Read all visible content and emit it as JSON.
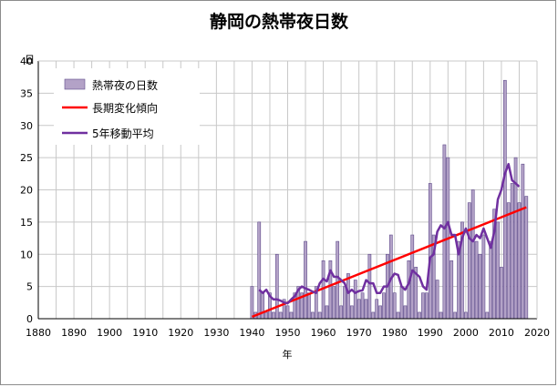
{
  "page": {
    "title": "静岡の熱帯夜日数"
  },
  "chart_data": {
    "type": "bar",
    "title": "静岡の熱帯夜日数",
    "xlabel": "年",
    "ylabel": "日",
    "xlim": [
      1880,
      2020
    ],
    "ylim": [
      0,
      40
    ],
    "x_ticks": [
      1880,
      1890,
      1900,
      1910,
      1920,
      1930,
      1940,
      1950,
      1960,
      1970,
      1980,
      1990,
      2000,
      2010,
      2020
    ],
    "y_ticks": [
      0,
      5,
      10,
      15,
      20,
      25,
      30,
      35,
      40
    ],
    "grid": true,
    "legend_position": "top-left",
    "colors": {
      "bar_fill": "#b3a2c7",
      "bar_stroke": "#5f4b8b",
      "trend": "#ff0000",
      "moving_avg": "#7030a0",
      "grid": "#c8c8c8"
    },
    "series": [
      {
        "name": "熱帯夜の日数",
        "kind": "bar",
        "x": [
          1940,
          1941,
          1942,
          1943,
          1944,
          1945,
          1946,
          1947,
          1948,
          1949,
          1950,
          1951,
          1952,
          1953,
          1954,
          1955,
          1956,
          1957,
          1958,
          1959,
          1960,
          1961,
          1962,
          1963,
          1964,
          1965,
          1966,
          1967,
          1968,
          1969,
          1970,
          1971,
          1972,
          1973,
          1974,
          1975,
          1976,
          1977,
          1978,
          1979,
          1980,
          1981,
          1982,
          1983,
          1984,
          1985,
          1986,
          1987,
          1988,
          1989,
          1990,
          1991,
          1992,
          1993,
          1994,
          1995,
          1996,
          1997,
          1998,
          1999,
          2000,
          2001,
          2002,
          2003,
          2004,
          2005,
          2006,
          2007,
          2008,
          2009,
          2010,
          2011,
          2012,
          2013,
          2014,
          2015,
          2016,
          2017
        ],
        "values": [
          5,
          1,
          15,
          4,
          1,
          4,
          1,
          10,
          1,
          3,
          2,
          1,
          4,
          5,
          4,
          12,
          4,
          1,
          5,
          1,
          9,
          2,
          9,
          5,
          12,
          2,
          5,
          7,
          2,
          6,
          3,
          4,
          3,
          10,
          1,
          3,
          2,
          4,
          10,
          13,
          4,
          1,
          5,
          2,
          9,
          13,
          8,
          1,
          4,
          4,
          21,
          13,
          6,
          1,
          27,
          25,
          9,
          1,
          12,
          15,
          1,
          18,
          20,
          12,
          10,
          13,
          1,
          12,
          17,
          15,
          8,
          37,
          18,
          21,
          25,
          18,
          24,
          19
        ]
      },
      {
        "name": "長期変化傾向",
        "kind": "line",
        "x": [
          1940,
          2017
        ],
        "values": [
          0.3,
          17.3
        ]
      },
      {
        "name": "5年移動平均",
        "kind": "line",
        "x": [
          1942,
          1943,
          1944,
          1945,
          1946,
          1947,
          1948,
          1949,
          1950,
          1951,
          1952,
          1953,
          1954,
          1955,
          1956,
          1957,
          1958,
          1959,
          1960,
          1961,
          1962,
          1963,
          1964,
          1965,
          1966,
          1967,
          1968,
          1969,
          1970,
          1971,
          1972,
          1973,
          1974,
          1975,
          1976,
          1977,
          1978,
          1979,
          1980,
          1981,
          1982,
          1983,
          1984,
          1985,
          1986,
          1987,
          1988,
          1989,
          1990,
          1991,
          1992,
          1993,
          1994,
          1995,
          1996,
          1997,
          1998,
          1999,
          2000,
          2001,
          2002,
          2003,
          2004,
          2005,
          2006,
          2007,
          2008,
          2009,
          2010,
          2011,
          2012,
          2013,
          2014,
          2015
        ],
        "values": [
          4.5,
          4,
          4.5,
          3.5,
          3,
          3,
          2.8,
          2.5,
          2.4,
          3,
          3.5,
          4.5,
          5,
          4.7,
          4.5,
          4.2,
          4,
          5.5,
          6.2,
          5.8,
          7.5,
          6.5,
          6.5,
          6,
          5.5,
          4,
          4.5,
          4,
          4.3,
          4.4,
          6,
          5.5,
          5.5,
          4,
          4,
          5,
          5,
          6.2,
          7,
          6.8,
          5,
          4.5,
          5.5,
          7.5,
          7,
          6.5,
          5,
          4.5,
          9.5,
          10,
          13.5,
          14.5,
          14,
          15,
          13,
          13,
          10,
          12.5,
          14,
          12.5,
          12,
          13,
          12.5,
          14,
          12.5,
          11,
          13.5,
          18.5,
          20,
          22.5,
          24,
          21.5,
          21,
          20.5
        ]
      }
    ]
  }
}
